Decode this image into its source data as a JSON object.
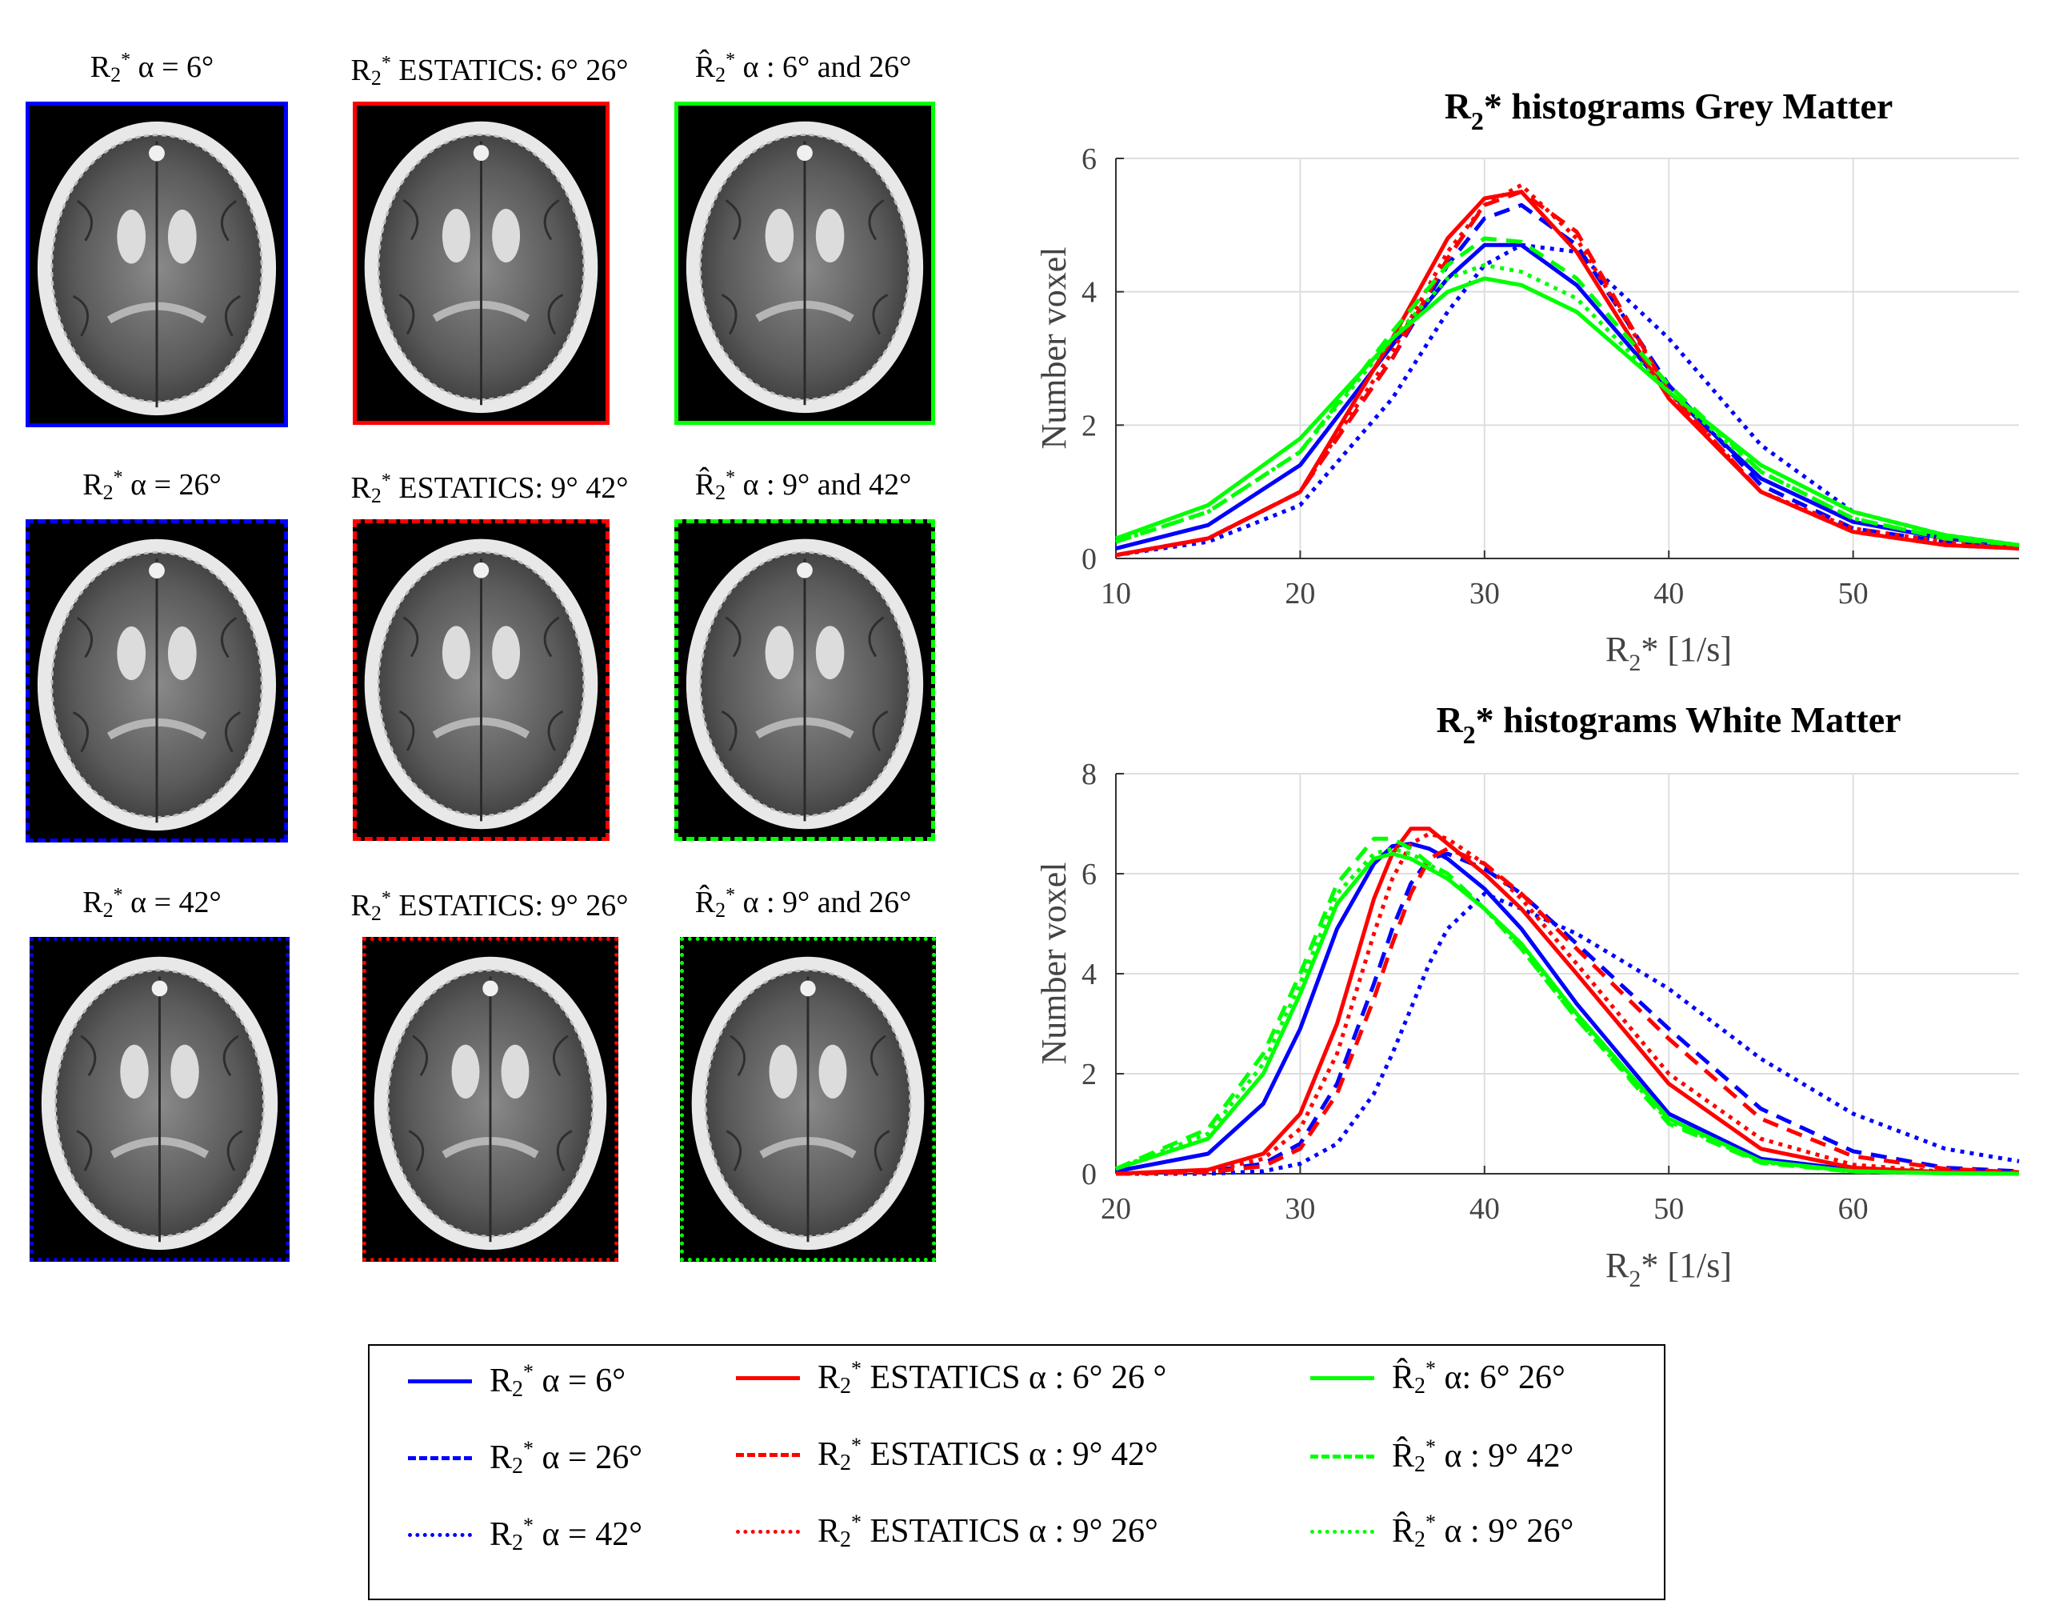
{
  "panels": [
    {
      "label": "R2* α = 6°",
      "color": "#0000ff",
      "style": "solid"
    },
    {
      "label": "R2* ESTATICS: 6° 26°",
      "color": "#ff0000",
      "style": "solid"
    },
    {
      "label": "R2* α : 6° and 26°",
      "color": "#00ff00",
      "style": "solid"
    },
    {
      "label": "R2* α = 26°",
      "color": "#0000ff",
      "style": "dashed"
    },
    {
      "label": "R2* ESTATICS: 9° 42°",
      "color": "#ff0000",
      "style": "dashed"
    },
    {
      "label": "R2* α : 9° and 42°",
      "color": "#00ff00",
      "style": "dashed"
    },
    {
      "label": "R2* α = 42°",
      "color": "#0000ff",
      "style": "dotted"
    },
    {
      "label": "R2* ESTATICS: 9° 26°",
      "color": "#ff0000",
      "style": "dotted"
    },
    {
      "label": "R2* α : 9° and 26°",
      "color": "#00ff00",
      "style": "dotted"
    }
  ],
  "legend": [
    {
      "label": "R2* α = 6°",
      "color": "#0000ff",
      "style": "solid"
    },
    {
      "label": "R2* α = 26°",
      "color": "#0000ff",
      "style": "dashed"
    },
    {
      "label": "R2* α = 42°",
      "color": "#0000ff",
      "style": "dotted"
    },
    {
      "label": "R2* ESTATICS α : 6° 26 °",
      "color": "#ff0000",
      "style": "solid"
    },
    {
      "label": "R2* ESTATICS α : 9° 42°",
      "color": "#ff0000",
      "style": "dashed"
    },
    {
      "label": "R2* ESTATICS α : 9° 26°",
      "color": "#ff0000",
      "style": "dotted"
    },
    {
      "label": "R2* α: 6° 26°",
      "color": "#00ff00",
      "style": "solid"
    },
    {
      "label": "R2* α : 9° 42°",
      "color": "#00ff00",
      "style": "dashed"
    },
    {
      "label": "R2* α : 9° 26°",
      "color": "#00ff00",
      "style": "dotted"
    }
  ],
  "chart_data": [
    {
      "type": "line",
      "title": "R2* histograms Grey Matter",
      "xlabel": "R2* [1/s]",
      "ylabel": "Number voxel",
      "xlim": [
        10,
        59
      ],
      "ylim": [
        0,
        6
      ],
      "xticks": [
        10,
        20,
        30,
        40,
        50
      ],
      "yticks": [
        0,
        2,
        4,
        6
      ],
      "grid": true,
      "x": [
        10,
        15,
        20,
        25,
        28,
        30,
        32,
        35,
        40,
        45,
        50,
        55,
        59
      ],
      "series": [
        {
          "name": "R2* α = 6°",
          "color": "#0000ff",
          "style": "solid",
          "values": [
            0.15,
            0.5,
            1.4,
            3.2,
            4.2,
            4.7,
            4.7,
            4.1,
            2.5,
            1.2,
            0.55,
            0.3,
            0.18
          ]
        },
        {
          "name": "R2* α = 26°",
          "color": "#0000ff",
          "style": "dashed",
          "values": [
            0.05,
            0.3,
            1.0,
            3.0,
            4.4,
            5.1,
            5.3,
            4.7,
            2.6,
            1.1,
            0.45,
            0.25,
            0.15
          ]
        },
        {
          "name": "R2* α = 42°",
          "color": "#0000ff",
          "style": "dotted",
          "values": [
            0.05,
            0.25,
            0.8,
            2.4,
            3.7,
            4.4,
            4.7,
            4.6,
            3.3,
            1.7,
            0.7,
            0.35,
            0.2
          ]
        },
        {
          "name": "R2* ESTATICS α : 6° 26 °",
          "color": "#ff0000",
          "style": "solid",
          "values": [
            0.05,
            0.3,
            1.0,
            3.3,
            4.8,
            5.4,
            5.5,
            4.6,
            2.4,
            1.0,
            0.4,
            0.2,
            0.15
          ]
        },
        {
          "name": "R2* ESTATICS α : 9° 42°",
          "color": "#ff0000",
          "style": "dashed",
          "values": [
            0.05,
            0.3,
            1.0,
            3.0,
            4.5,
            5.3,
            5.5,
            4.9,
            2.5,
            1.0,
            0.4,
            0.2,
            0.15
          ]
        },
        {
          "name": "R2* ESTATICS α : 9° 26°",
          "color": "#ff0000",
          "style": "dotted",
          "values": [
            0.05,
            0.3,
            1.0,
            3.1,
            4.6,
            5.3,
            5.6,
            4.8,
            2.5,
            1.0,
            0.45,
            0.25,
            0.15
          ]
        },
        {
          "name": "R2* α: 6° 26°",
          "color": "#00ff00",
          "style": "solid",
          "values": [
            0.3,
            0.8,
            1.8,
            3.3,
            4.0,
            4.2,
            4.1,
            3.7,
            2.5,
            1.4,
            0.7,
            0.35,
            0.2
          ]
        },
        {
          "name": "R2* α : 9° 42°",
          "color": "#00ff00",
          "style": "dashed",
          "values": [
            0.25,
            0.7,
            1.6,
            3.4,
            4.4,
            4.8,
            4.75,
            4.2,
            2.6,
            1.3,
            0.6,
            0.3,
            0.2
          ]
        },
        {
          "name": "R2* α : 9° 26°",
          "color": "#00ff00",
          "style": "dotted",
          "values": [
            0.25,
            0.7,
            1.6,
            3.3,
            4.2,
            4.4,
            4.3,
            3.9,
            2.5,
            1.3,
            0.6,
            0.3,
            0.2
          ]
        }
      ]
    },
    {
      "type": "line",
      "title": "R2* histograms White Matter",
      "xlabel": "R2* [1/s]",
      "ylabel": "Number voxel",
      "xlim": [
        20,
        69
      ],
      "ylim": [
        0,
        8
      ],
      "xticks": [
        20,
        30,
        40,
        50,
        60
      ],
      "yticks": [
        0,
        2,
        4,
        6,
        8
      ],
      "grid": true,
      "x": [
        20,
        25,
        28,
        30,
        32,
        34,
        35,
        36,
        37,
        38,
        40,
        42,
        45,
        50,
        55,
        60,
        65,
        69
      ],
      "series": [
        {
          "name": "R2* α = 6°",
          "color": "#0000ff",
          "style": "solid",
          "values": [
            0.05,
            0.4,
            1.4,
            2.9,
            4.9,
            6.2,
            6.55,
            6.6,
            6.5,
            6.3,
            5.7,
            4.9,
            3.4,
            1.2,
            0.3,
            0.08,
            0.02,
            0.01
          ]
        },
        {
          "name": "R2* α = 26°",
          "color": "#0000ff",
          "style": "dashed",
          "values": [
            0.0,
            0.05,
            0.2,
            0.6,
            1.8,
            3.8,
            4.9,
            5.8,
            6.3,
            6.4,
            6.1,
            5.6,
            4.6,
            2.9,
            1.3,
            0.45,
            0.12,
            0.05
          ]
        },
        {
          "name": "R2* α = 42°",
          "color": "#0000ff",
          "style": "dotted",
          "values": [
            0.0,
            0.0,
            0.05,
            0.2,
            0.6,
            1.6,
            2.4,
            3.3,
            4.2,
            4.9,
            5.6,
            5.3,
            4.8,
            3.7,
            2.3,
            1.2,
            0.5,
            0.25
          ]
        },
        {
          "name": "R2* ESTATICS α : 6° 26 °",
          "color": "#ff0000",
          "style": "solid",
          "values": [
            0.0,
            0.08,
            0.4,
            1.2,
            3.0,
            5.5,
            6.4,
            6.9,
            6.9,
            6.6,
            6.0,
            5.3,
            4.0,
            1.8,
            0.5,
            0.12,
            0.03,
            0.01
          ]
        },
        {
          "name": "R2* ESTATICS α : 9° 42°",
          "color": "#ff0000",
          "style": "dashed",
          "values": [
            0.0,
            0.03,
            0.15,
            0.5,
            1.6,
            3.5,
            4.6,
            5.6,
            6.3,
            6.5,
            6.2,
            5.6,
            4.5,
            2.7,
            1.1,
            0.35,
            0.1,
            0.03
          ]
        },
        {
          "name": "R2* ESTATICS α : 9° 26°",
          "color": "#ff0000",
          "style": "dotted",
          "values": [
            0.0,
            0.05,
            0.3,
            0.9,
            2.4,
            4.8,
            5.9,
            6.6,
            6.8,
            6.7,
            6.2,
            5.5,
            4.2,
            2.0,
            0.7,
            0.18,
            0.04,
            0.01
          ]
        },
        {
          "name": "R2* α: 6° 26°",
          "color": "#00ff00",
          "style": "solid",
          "values": [
            0.1,
            0.7,
            2.0,
            3.6,
            5.4,
            6.3,
            6.4,
            6.3,
            6.1,
            5.9,
            5.3,
            4.6,
            3.2,
            1.1,
            0.25,
            0.05,
            0.01,
            0.0
          ]
        },
        {
          "name": "R2* α : 9° 42°",
          "color": "#00ff00",
          "style": "dashed",
          "values": [
            0.1,
            0.9,
            2.4,
            4.0,
            5.8,
            6.7,
            6.7,
            6.5,
            6.2,
            6.0,
            5.3,
            4.5,
            3.1,
            1.0,
            0.22,
            0.04,
            0.01,
            0.0
          ]
        },
        {
          "name": "R2* α : 9° 26°",
          "color": "#00ff00",
          "style": "dotted",
          "values": [
            0.1,
            0.8,
            2.2,
            3.8,
            5.6,
            6.4,
            6.5,
            6.4,
            6.2,
            5.9,
            5.3,
            4.5,
            3.1,
            1.05,
            0.23,
            0.05,
            0.01,
            0.0
          ]
        }
      ]
    }
  ]
}
